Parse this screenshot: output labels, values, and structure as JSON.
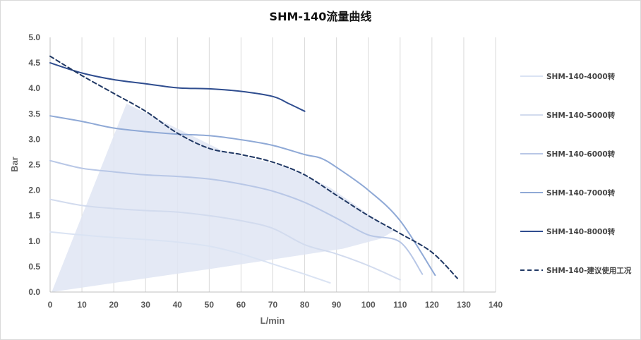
{
  "chart_data": {
    "type": "line",
    "title": "SHM-140流量曲线",
    "xlabel": "L/min",
    "ylabel": "Bar",
    "xlim": [
      0,
      140
    ],
    "ylim": [
      0,
      5
    ],
    "x_ticks": [
      "0",
      "10",
      "20",
      "30",
      "40",
      "50",
      "60",
      "70",
      "80",
      "90",
      "100",
      "110",
      "120",
      "130",
      "140"
    ],
    "y_ticks": [
      "0.0",
      "0.5",
      "1.0",
      "1.5",
      "2.0",
      "2.5",
      "3.0",
      "3.5",
      "4.0",
      "4.5",
      "5.0"
    ],
    "grid": "vertical",
    "legend_position": "right",
    "shaded_region": {
      "color": "#dfe5f3",
      "points": [
        [
          0.5,
          0.0
        ],
        [
          24,
          3.7
        ],
        [
          55,
          2.75
        ],
        [
          75,
          2.45
        ],
        [
          88,
          2.05
        ],
        [
          95,
          1.75
        ],
        [
          103,
          1.4
        ],
        [
          108,
          1.2
        ],
        [
          104,
          1.05
        ],
        [
          92,
          0.85
        ],
        [
          50,
          0.45
        ],
        [
          0.5,
          0.0
        ]
      ]
    },
    "series": [
      {
        "name": "SHM-140-4000转",
        "color": "#dae3f3",
        "width": 2,
        "dash": "",
        "x": [
          0,
          10,
          20,
          30,
          40,
          50,
          60,
          70,
          80,
          88
        ],
        "y": [
          1.18,
          1.12,
          1.07,
          1.03,
          0.98,
          0.9,
          0.75,
          0.55,
          0.35,
          0.18
        ]
      },
      {
        "name": "SHM-140-5000转",
        "color": "#d2dbee",
        "width": 2,
        "dash": "",
        "x": [
          0,
          10,
          20,
          30,
          40,
          50,
          60,
          70,
          80,
          90,
          100,
          110
        ],
        "y": [
          1.82,
          1.7,
          1.64,
          1.6,
          1.57,
          1.5,
          1.4,
          1.25,
          0.93,
          0.75,
          0.52,
          0.24
        ]
      },
      {
        "name": "SHM-140-6000转",
        "color": "#b8c7e6",
        "width": 2,
        "dash": "",
        "x": [
          0,
          10,
          20,
          30,
          40,
          50,
          60,
          70,
          80,
          90,
          100,
          110,
          117
        ],
        "y": [
          2.58,
          2.43,
          2.36,
          2.3,
          2.27,
          2.22,
          2.12,
          1.98,
          1.76,
          1.45,
          1.12,
          0.98,
          0.35
        ]
      },
      {
        "name": "SHM-140-7000转",
        "color": "#8fa9d6",
        "width": 2,
        "dash": "",
        "x": [
          0,
          10,
          20,
          30,
          40,
          50,
          60,
          70,
          80,
          85,
          90,
          100,
          110,
          121
        ],
        "y": [
          3.46,
          3.35,
          3.22,
          3.15,
          3.1,
          3.07,
          2.99,
          2.88,
          2.7,
          2.63,
          2.45,
          2.0,
          1.4,
          0.33
        ]
      },
      {
        "name": "SHM-140-8000转",
        "color": "#2f4d8f",
        "width": 2,
        "dash": "",
        "x": [
          0,
          10,
          20,
          30,
          40,
          50,
          60,
          70,
          75,
          80
        ],
        "y": [
          4.5,
          4.3,
          4.17,
          4.09,
          4.01,
          3.99,
          3.94,
          3.84,
          3.7,
          3.55
        ]
      },
      {
        "name": "SHM-140-建议使用工况",
        "color": "#203864",
        "width": 2,
        "dash": "6,4",
        "x": [
          0,
          10,
          20,
          30,
          40,
          50,
          60,
          70,
          80,
          90,
          100,
          110,
          120,
          128
        ],
        "y": [
          4.63,
          4.25,
          3.9,
          3.55,
          3.12,
          2.82,
          2.7,
          2.55,
          2.3,
          1.9,
          1.5,
          1.15,
          0.78,
          0.27
        ]
      }
    ]
  }
}
